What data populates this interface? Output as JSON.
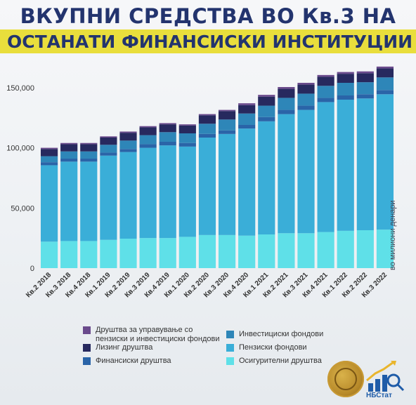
{
  "title_line1": "ВКУПНИ СРЕДСТВА ВО Кв.3 НА",
  "title_line2": "ОСТАНАТИ ФИНАНСИСКИ ИНСТИТУЦИИ",
  "unit_label": "во милиони денари",
  "logo_label": "НБСтат",
  "chart_data": {
    "type": "bar",
    "stacked": true,
    "title": "ВКУПНИ СРЕДСТВА ВО Кв.3 НА ОСТАНАТИ ФИНАНСИСКИ ИНСТИТУЦИИ",
    "ylabel": "во милиони денари",
    "ylim": [
      0,
      175000
    ],
    "yticks": [
      0,
      50000,
      100000,
      150000
    ],
    "ytick_labels": [
      "0",
      "50,000",
      "100,000",
      "150,000"
    ],
    "grid": false,
    "legend_position": "bottom",
    "categories": [
      "Кв.2 2018",
      "Кв.3 2018",
      "Кв.4 2018",
      "Кв.1 2019",
      "Кв.2 2019",
      "Кв.3 2019",
      "Кв.4 2019",
      "Кв.1 2020",
      "Кв.2 2020",
      "Кв.3 2020",
      "Кв.4 2020",
      "Кв.1 2021",
      "Кв.2 2021",
      "Кв.3 2021",
      "Кв.4 2021",
      "Кв.1 2022",
      "Кв.2 2022",
      "Кв.3 2022"
    ],
    "series": [
      {
        "name": "Осигурителни друштва",
        "color": "#5fe0e8",
        "values": [
          22000,
          22500,
          22500,
          23500,
          24500,
          25000,
          25000,
          26000,
          27500,
          27500,
          27000,
          28000,
          29000,
          29000,
          30000,
          31000,
          31500,
          32000
        ]
      },
      {
        "name": "Пензиски фондови",
        "color": "#3aaed8",
        "values": [
          63500,
          66000,
          66000,
          70000,
          72000,
          75000,
          77000,
          75000,
          81000,
          84000,
          89000,
          94000,
          99000,
          102500,
          108000,
          109000,
          109500,
          112500
        ]
      },
      {
        "name": "Финансиски друштва",
        "color": "#2a64a8",
        "values": [
          2500,
          2500,
          2500,
          2500,
          2500,
          3000,
          3000,
          3000,
          3000,
          3000,
          3000,
          3500,
          3500,
          3500,
          3500,
          3500,
          3500,
          3500
        ]
      },
      {
        "name": "Инвестициски фондови",
        "color": "#2e86b8",
        "values": [
          5000,
          6000,
          6000,
          6500,
          7000,
          7500,
          8000,
          8000,
          8500,
          9000,
          9500,
          9500,
          10000,
          10000,
          10000,
          10500,
          10000,
          10500
        ]
      },
      {
        "name": "Лизинг друштва",
        "color": "#27295e",
        "values": [
          6000,
          6000,
          6000,
          6000,
          6500,
          6500,
          6500,
          6500,
          7000,
          7000,
          7000,
          7500,
          7500,
          7500,
          7500,
          7500,
          7500,
          7500
        ]
      },
      {
        "name": "Друштва за управување со пензиски и инвестициски фондови",
        "color": "#6a4a8c",
        "values": [
          1000,
          1000,
          1000,
          1000,
          1000,
          1000,
          1000,
          1000,
          1000,
          1000,
          1500,
          1500,
          1500,
          1500,
          1500,
          1500,
          1500,
          1500
        ]
      }
    ]
  },
  "legend": {
    "left": [
      {
        "label": "Друштва за управување со пензиски и инвестициски фондови",
        "color": "#6a4a8c"
      },
      {
        "label": "Лизинг друштва",
        "color": "#27295e"
      },
      {
        "label": "Финансиски друштва",
        "color": "#2a64a8"
      }
    ],
    "right": [
      {
        "label": "Инвестициски фондови",
        "color": "#2e86b8"
      },
      {
        "label": "Пензиски фондови",
        "color": "#3aaed8"
      },
      {
        "label": "Осигурителни друштва",
        "color": "#5fe0e8"
      }
    ]
  }
}
